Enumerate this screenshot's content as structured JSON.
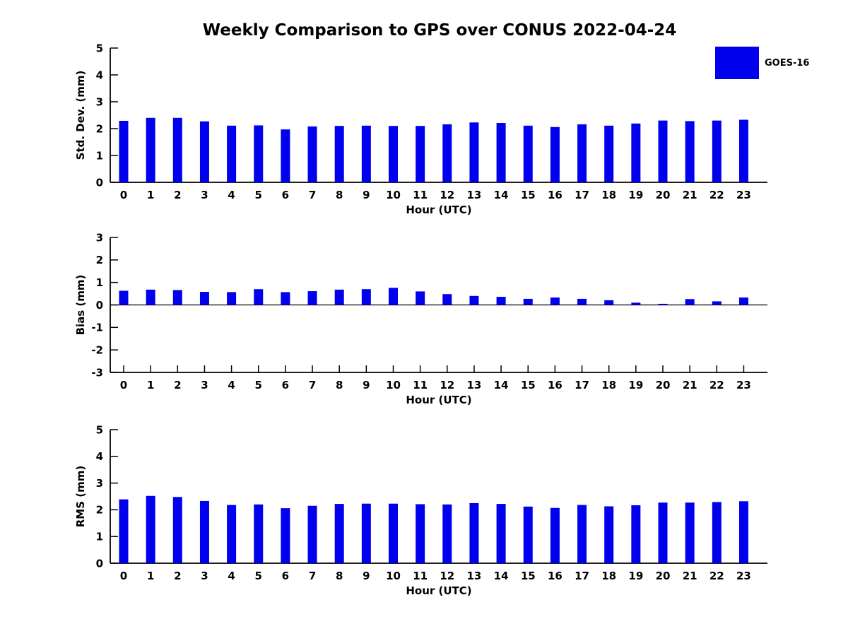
{
  "figure": {
    "title": "Weekly Comparison to GPS over CONUS 2022-04-24",
    "background_color": "#FFFFFF",
    "bar_color": "#0000EE",
    "text_color": "#000000",
    "legend": {
      "label": "GOES-16",
      "color": "#0000EE",
      "position": "upper-right"
    }
  },
  "chart_data": [
    {
      "type": "bar",
      "panel": "std-dev",
      "title": "",
      "xlabel": "Hour (UTC)",
      "ylabel": "Std. Dev. (mm)",
      "ylim": [
        0,
        5
      ],
      "yticks": [
        0,
        1,
        2,
        3,
        4,
        5
      ],
      "grid": false,
      "categories": [
        "0",
        "1",
        "2",
        "3",
        "4",
        "5",
        "6",
        "7",
        "8",
        "9",
        "10",
        "11",
        "12",
        "13",
        "14",
        "15",
        "16",
        "17",
        "18",
        "19",
        "20",
        "21",
        "22",
        "23"
      ],
      "series": [
        {
          "name": "GOES-16",
          "values": [
            2.29,
            2.4,
            2.4,
            2.27,
            2.11,
            2.12,
            1.97,
            2.08,
            2.1,
            2.11,
            2.1,
            2.1,
            2.16,
            2.23,
            2.21,
            2.11,
            2.06,
            2.16,
            2.11,
            2.19,
            2.3,
            2.28,
            2.3,
            2.33
          ]
        }
      ]
    },
    {
      "type": "bar",
      "panel": "bias",
      "title": "",
      "xlabel": "Hour (UTC)",
      "ylabel": "Bias (mm)",
      "ylim": [
        -3,
        3
      ],
      "yticks": [
        -3,
        -2,
        -1,
        0,
        1,
        2,
        3
      ],
      "zero_line": true,
      "grid": false,
      "categories": [
        "0",
        "1",
        "2",
        "3",
        "4",
        "5",
        "6",
        "7",
        "8",
        "9",
        "10",
        "11",
        "12",
        "13",
        "14",
        "15",
        "16",
        "17",
        "18",
        "19",
        "20",
        "21",
        "22",
        "23"
      ],
      "series": [
        {
          "name": "GOES-16",
          "values": [
            0.63,
            0.68,
            0.66,
            0.58,
            0.57,
            0.7,
            0.57,
            0.61,
            0.68,
            0.7,
            0.76,
            0.6,
            0.48,
            0.4,
            0.36,
            0.27,
            0.33,
            0.27,
            0.21,
            0.1,
            0.05,
            0.26,
            0.16,
            0.33
          ]
        }
      ]
    },
    {
      "type": "bar",
      "panel": "rms",
      "title": "",
      "xlabel": "Hour (UTC)",
      "ylabel": "RMS (mm)",
      "ylim": [
        0,
        5
      ],
      "yticks": [
        0,
        1,
        2,
        3,
        4,
        5
      ],
      "grid": false,
      "categories": [
        "0",
        "1",
        "2",
        "3",
        "4",
        "5",
        "6",
        "7",
        "8",
        "9",
        "10",
        "11",
        "12",
        "13",
        "14",
        "15",
        "16",
        "17",
        "18",
        "19",
        "20",
        "21",
        "22",
        "23"
      ],
      "series": [
        {
          "name": "GOES-16",
          "values": [
            2.39,
            2.52,
            2.48,
            2.33,
            2.18,
            2.2,
            2.06,
            2.15,
            2.22,
            2.23,
            2.23,
            2.21,
            2.2,
            2.25,
            2.22,
            2.12,
            2.07,
            2.18,
            2.13,
            2.17,
            2.27,
            2.27,
            2.29,
            2.32
          ]
        }
      ]
    }
  ]
}
